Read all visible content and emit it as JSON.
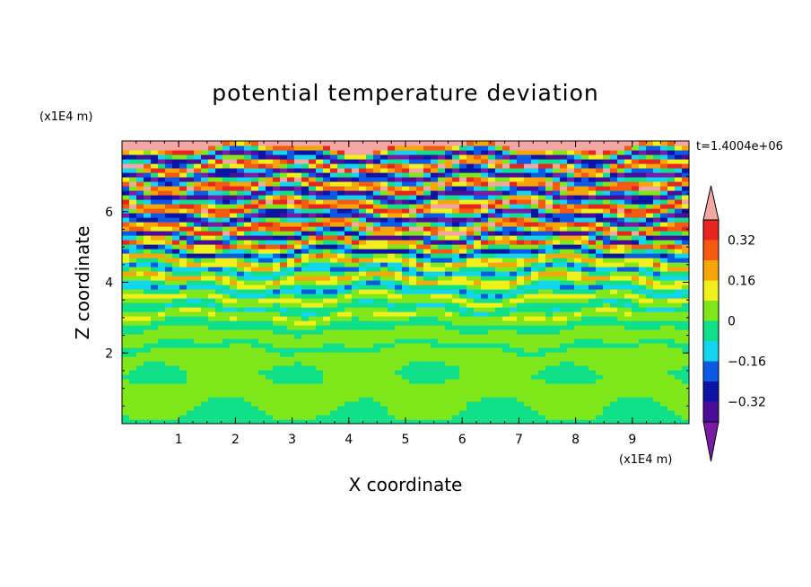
{
  "chart_data": {
    "type": "heatmap",
    "title": "potential temperature deviation",
    "xlabel": "X coordinate",
    "ylabel": "Z coordinate",
    "x_unit": "(x1E4 m)",
    "y_unit": "(x1E4 m)",
    "time_label": "t=1.4004e+06",
    "xlim": [
      0,
      10
    ],
    "ylim": [
      0,
      8
    ],
    "x_ticks": [
      "1",
      "2",
      "3",
      "4",
      "5",
      "6",
      "7",
      "8",
      "9"
    ],
    "y_ticks": [
      "2",
      "4",
      "6"
    ],
    "levels": [
      -0.4,
      -0.32,
      -0.24,
      -0.16,
      -0.08,
      0,
      0.08,
      0.16,
      0.24,
      0.32,
      0.4
    ],
    "colorbar_ticks": [
      "0.32",
      "0.16",
      "0",
      "−0.16",
      "−0.32"
    ],
    "colorbar_tick_values": [
      0.32,
      0.16,
      0,
      -0.16,
      -0.32
    ],
    "colors": {
      "below": "#7a1aa6",
      "bands": [
        "#4b0c9a",
        "#0c14a6",
        "#0a5ae6",
        "#12d6f0",
        "#10e08a",
        "#80e81a",
        "#f0f01a",
        "#f8a50a",
        "#f55a10",
        "#e8251e"
      ],
      "above": "#f3a6a2"
    },
    "layers": [
      {
        "z": 7.85,
        "v": 0.45
      },
      {
        "z": 7.55,
        "v": -0.45
      },
      {
        "z": 7.3,
        "v": 0.45
      },
      {
        "z": 7.05,
        "v": -0.45
      },
      {
        "z": 6.75,
        "v": 0.45
      },
      {
        "z": 6.5,
        "v": -0.45
      },
      {
        "z": 6.15,
        "v": 0.45
      },
      {
        "z": 5.85,
        "v": -0.45
      },
      {
        "z": 5.55,
        "v": 0.45
      },
      {
        "z": 5.3,
        "v": -0.4
      },
      {
        "z": 5.1,
        "v": 0.35
      },
      {
        "z": 4.85,
        "v": -0.3
      },
      {
        "z": 4.6,
        "v": 0.25
      },
      {
        "z": 4.35,
        "v": -0.2
      },
      {
        "z": 4.1,
        "v": 0.2
      },
      {
        "z": 3.8,
        "v": -0.18
      },
      {
        "z": 3.55,
        "v": 0.14
      },
      {
        "z": 3.3,
        "v": -0.1
      },
      {
        "z": 3.05,
        "v": 0.1
      },
      {
        "z": 2.8,
        "v": -0.05
      },
      {
        "z": 2.5,
        "v": 0.06
      },
      {
        "z": 2.2,
        "v": -0.02
      },
      {
        "z": 1.9,
        "v": 0.04
      },
      {
        "z": 1.4,
        "v": 0.0
      },
      {
        "z": 0.8,
        "v": 0.03
      },
      {
        "z": 0.2,
        "v": -0.01
      }
    ]
  }
}
